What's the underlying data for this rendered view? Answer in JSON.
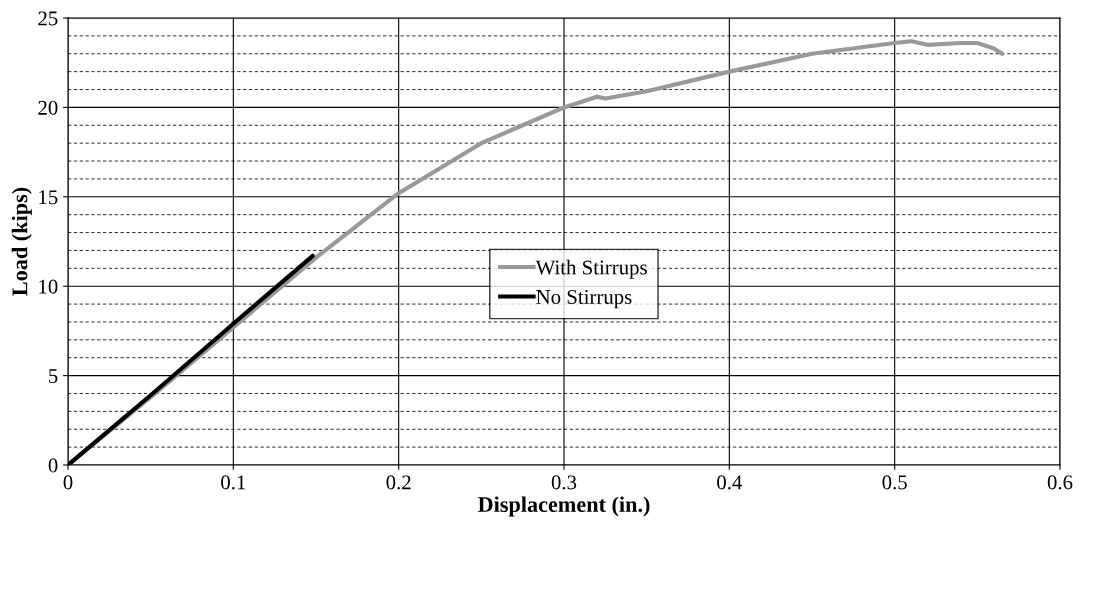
{
  "chart_data": {
    "type": "line",
    "xlabel": "Displacement (in.)",
    "ylabel": "Load (kips)",
    "xlim": [
      0,
      0.6
    ],
    "xticks": [
      0,
      0.1,
      0.2,
      0.3,
      0.4,
      0.5,
      0.6
    ],
    "ylim": [
      0,
      25
    ],
    "yticks": [
      0,
      {
        "value": 1,
        "label": null
      },
      {
        "value": 2,
        "label": null
      },
      {
        "value": 3,
        "label": null
      },
      {
        "value": 4,
        "label": null
      },
      5,
      {
        "value": 6,
        "label": null
      },
      {
        "value": 7,
        "label": null
      },
      {
        "value": 8,
        "label": null
      },
      {
        "value": 9,
        "label": null
      },
      10,
      {
        "value": 11,
        "label": null
      },
      {
        "value": 12,
        "label": null
      },
      {
        "value": 13,
        "label": null
      },
      {
        "value": 14,
        "label": null
      },
      15,
      {
        "value": 16,
        "label": null
      },
      {
        "value": 17,
        "label": null
      },
      {
        "value": 18,
        "label": null
      },
      {
        "value": 19,
        "label": null
      },
      20,
      {
        "value": 21,
        "label": null
      },
      {
        "value": 22,
        "label": null
      },
      {
        "value": 23,
        "label": null
      },
      {
        "value": 24,
        "label": null
      },
      25
    ],
    "grid": true,
    "legend": "center",
    "marker": "none",
    "line_style": "solid",
    "series": [
      {
        "name": "With Stirrups",
        "color": "#999999",
        "x": [
          0,
          0.05,
          0.1,
          0.15,
          0.2,
          0.25,
          0.3,
          0.32,
          0.325,
          0.35,
          0.4,
          0.45,
          0.5,
          0.51,
          0.52,
          0.54,
          0.55,
          0.56,
          0.565
        ],
        "values": [
          0,
          3.8,
          7.7,
          11.6,
          15.2,
          18.0,
          20.0,
          20.6,
          20.5,
          20.9,
          22.0,
          23.0,
          23.6,
          23.7,
          23.5,
          23.6,
          23.6,
          23.3,
          23.0
        ]
      },
      {
        "name": "No Stirrups",
        "color": "#000000",
        "x": [
          0,
          0.05,
          0.1,
          0.148
        ],
        "values": [
          0,
          3.9,
          7.9,
          11.7
        ]
      }
    ]
  }
}
